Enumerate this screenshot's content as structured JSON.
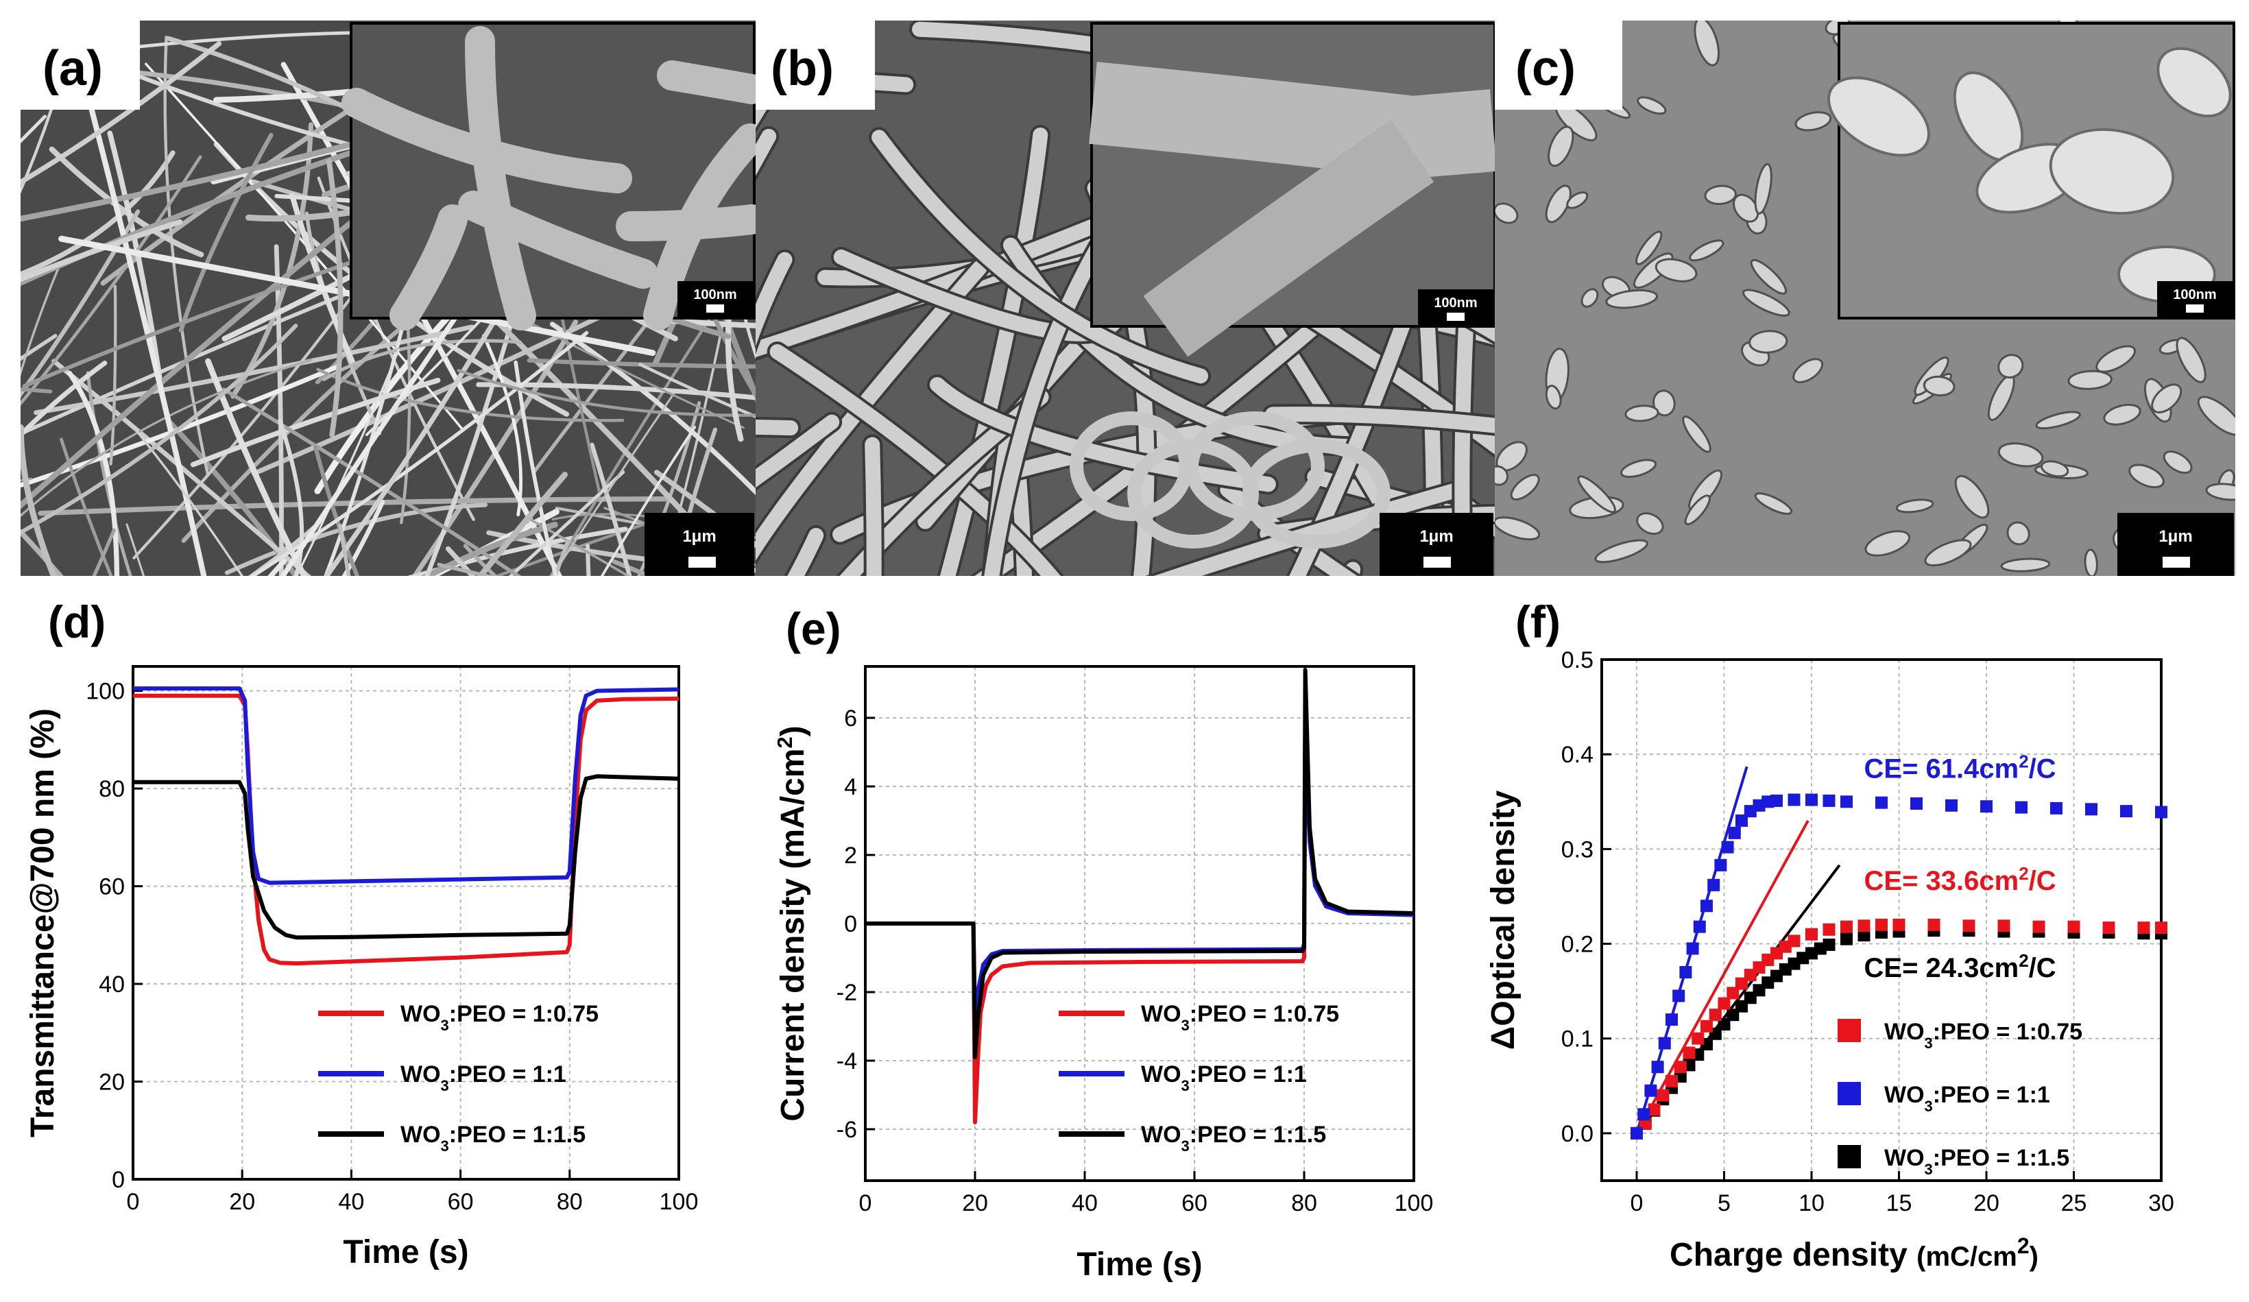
{
  "panels": {
    "a": {
      "label": "(a)",
      "main_scale": "1μm",
      "inset_scale": "100nm"
    },
    "b": {
      "label": "(b)",
      "main_scale": "1μm",
      "inset_scale": "100nm"
    },
    "c": {
      "label": "(c)",
      "main_scale": "1μm",
      "inset_scale": "100nm"
    }
  },
  "colors": {
    "red": "#e8141c",
    "blue": "#1a1ad8",
    "black": "#000000"
  },
  "chart_data": [
    {
      "id": "d",
      "panel_label": "(d)",
      "type": "line",
      "xlabel": "Time (s)",
      "ylabel": "Transmittance@700 nm (%)",
      "xlim": [
        0,
        100
      ],
      "ylim": [
        0,
        105
      ],
      "xticks": [
        0,
        20,
        40,
        60,
        80,
        100
      ],
      "yticks": [
        0,
        20,
        40,
        60,
        80,
        100
      ],
      "legend_position": "bottom-right",
      "series": [
        {
          "name_main": "WO",
          "name_sub": "3",
          "name_rest": ":PEO = 1:0.75",
          "color": "#e8141c",
          "points": [
            [
              0,
              99
            ],
            [
              19.5,
              99
            ],
            [
              20.5,
              97
            ],
            [
              21,
              88
            ],
            [
              22,
              65
            ],
            [
              23,
              53
            ],
            [
              24,
              47
            ],
            [
              25,
              45
            ],
            [
              27,
              44.3
            ],
            [
              30,
              44.2
            ],
            [
              40,
              44.6
            ],
            [
              60,
              45.4
            ],
            [
              79.5,
              46.5
            ],
            [
              80,
              48
            ],
            [
              81,
              73
            ],
            [
              82,
              90
            ],
            [
              83,
              96
            ],
            [
              85,
              98
            ],
            [
              90,
              98.3
            ],
            [
              100,
              98.4
            ]
          ]
        },
        {
          "name_main": "WO",
          "name_sub": "3",
          "name_rest": ":PEO = 1:1",
          "color": "#1a1ad8",
          "points": [
            [
              0,
              100.5
            ],
            [
              19.5,
              100.5
            ],
            [
              20.5,
              98
            ],
            [
              21,
              85
            ],
            [
              22,
              67
            ],
            [
              23,
              61.5
            ],
            [
              25,
              60.7
            ],
            [
              30,
              60.8
            ],
            [
              50,
              61.2
            ],
            [
              79.5,
              61.8
            ],
            [
              80,
              63
            ],
            [
              81,
              82
            ],
            [
              82,
              95
            ],
            [
              83,
              99
            ],
            [
              85,
              100
            ],
            [
              100,
              100.3
            ]
          ]
        },
        {
          "name_main": "WO",
          "name_sub": "3",
          "name_rest": ":PEO = 1:1.5",
          "color": "#000000",
          "points": [
            [
              0,
              81.3
            ],
            [
              19.5,
              81.3
            ],
            [
              20.5,
              79
            ],
            [
              21,
              72
            ],
            [
              22,
              62
            ],
            [
              24,
              55
            ],
            [
              26,
              51.5
            ],
            [
              28,
              50
            ],
            [
              30,
              49.5
            ],
            [
              40,
              49.6
            ],
            [
              60,
              50
            ],
            [
              79.5,
              50.3
            ],
            [
              80,
              52
            ],
            [
              81,
              67
            ],
            [
              82,
              78
            ],
            [
              83,
              82
            ],
            [
              85,
              82.5
            ],
            [
              100,
              82
            ]
          ]
        }
      ]
    },
    {
      "id": "e",
      "panel_label": "(e)",
      "type": "line",
      "xlabel": "Time (s)",
      "ylabel_main": "Current density (mA/cm",
      "ylabel_sup": "2",
      "ylabel_close": ")",
      "xlim": [
        0,
        100
      ],
      "ylim": [
        -7.5,
        7.5
      ],
      "xticks": [
        0,
        20,
        40,
        60,
        80,
        100
      ],
      "yticks": [
        -6,
        -4,
        -2,
        0,
        2,
        4,
        6
      ],
      "legend_position": "bottom-right",
      "series": [
        {
          "name_main": "WO",
          "name_sub": "3",
          "name_rest": ":PEO = 1:0.75",
          "color": "#e8141c",
          "points": [
            [
              0,
              0
            ],
            [
              19.7,
              0
            ],
            [
              20,
              -5.8
            ],
            [
              20.5,
              -4
            ],
            [
              21,
              -2.6
            ],
            [
              22,
              -1.8
            ],
            [
              23,
              -1.5
            ],
            [
              25,
              -1.25
            ],
            [
              30,
              -1.15
            ],
            [
              50,
              -1.12
            ],
            [
              79.7,
              -1.1
            ],
            [
              80,
              -1
            ],
            [
              80.2,
              5.8
            ],
            [
              81,
              2.5
            ],
            [
              82,
              1.2
            ],
            [
              84,
              0.5
            ],
            [
              88,
              0.3
            ],
            [
              100,
              0.3
            ]
          ]
        },
        {
          "name_main": "WO",
          "name_sub": "3",
          "name_rest": ":PEO = 1:1",
          "color": "#1a1ad8",
          "points": [
            [
              0,
              0
            ],
            [
              19.7,
              0
            ],
            [
              20,
              -2.7
            ],
            [
              20.5,
              -2
            ],
            [
              21.5,
              -1.2
            ],
            [
              23,
              -0.9
            ],
            [
              25,
              -0.8
            ],
            [
              40,
              -0.78
            ],
            [
              79.7,
              -0.75
            ],
            [
              80,
              -0.6
            ],
            [
              80.2,
              5.9
            ],
            [
              81,
              2.4
            ],
            [
              82,
              1.1
            ],
            [
              84,
              0.5
            ],
            [
              88,
              0.3
            ],
            [
              100,
              0.25
            ]
          ]
        },
        {
          "name_main": "WO",
          "name_sub": "3",
          "name_rest": ":PEO = 1:1.5",
          "color": "#000000",
          "points": [
            [
              0,
              0
            ],
            [
              19.7,
              0
            ],
            [
              20,
              -3.9
            ],
            [
              20.5,
              -2.8
            ],
            [
              21.5,
              -1.5
            ],
            [
              23,
              -1
            ],
            [
              25,
              -0.85
            ],
            [
              40,
              -0.82
            ],
            [
              79.7,
              -0.8
            ],
            [
              80,
              -0.7
            ],
            [
              80.2,
              7.4
            ],
            [
              81,
              2.8
            ],
            [
              82,
              1.3
            ],
            [
              84,
              0.6
            ],
            [
              88,
              0.35
            ],
            [
              100,
              0.3
            ]
          ]
        }
      ]
    },
    {
      "id": "f",
      "panel_label": "(f)",
      "type": "scatter",
      "xlabel_main": "Charge density",
      "xlabel_unit": "(mC/cm",
      "xlabel_sup": "2",
      "xlabel_close": ")",
      "ylabel": "ΔOptical density",
      "xlim": [
        -2,
        30
      ],
      "ylim": [
        -0.05,
        0.5
      ],
      "xticks": [
        0,
        5,
        10,
        15,
        20,
        25,
        30
      ],
      "yticks": [
        0.0,
        0.1,
        0.2,
        0.3,
        0.4,
        0.5
      ],
      "legend_position": "bottom-right",
      "annotations": [
        {
          "text_main": "CE=  61.4cm",
          "text_sup": "2",
          "text_rest": "/C",
          "color": "#1a1ad8",
          "x": 13,
          "y": 0.375
        },
        {
          "text_main": "CE=  33.6cm",
          "text_sup": "2",
          "text_rest": "/C",
          "color": "#e8141c",
          "x": 13,
          "y": 0.257
        },
        {
          "text_main": "CE=  24.3cm",
          "text_sup": "2",
          "text_rest": "/C",
          "color": "#000000",
          "x": 13,
          "y": 0.165
        }
      ],
      "fit_lines": [
        {
          "color": "#1a1ad8",
          "x0": 0,
          "y0": 0,
          "x1": 6.3,
          "y1": 0.387
        },
        {
          "color": "#e8141c",
          "x0": 0,
          "y0": 0,
          "x1": 9.8,
          "y1": 0.33
        },
        {
          "color": "#000000",
          "x0": 0,
          "y0": 0,
          "x1": 11.6,
          "y1": 0.283
        }
      ],
      "series": [
        {
          "name_main": "WO",
          "name_sub": "3",
          "name_rest": ":PEO = 1:0.75",
          "color": "#e8141c",
          "x": [
            0,
            0.5,
            1,
            1.5,
            2,
            2.5,
            3,
            3.5,
            4,
            4.5,
            5,
            5.5,
            6,
            6.5,
            7,
            7.5,
            8,
            8.5,
            9,
            10,
            11,
            12,
            13,
            14,
            15,
            17,
            19,
            21,
            23,
            25,
            27,
            29,
            30
          ],
          "y": [
            0,
            0.01,
            0.025,
            0.04,
            0.055,
            0.07,
            0.085,
            0.1,
            0.113,
            0.125,
            0.137,
            0.148,
            0.158,
            0.167,
            0.175,
            0.183,
            0.19,
            0.197,
            0.203,
            0.21,
            0.215,
            0.218,
            0.219,
            0.22,
            0.22,
            0.22,
            0.219,
            0.219,
            0.218,
            0.218,
            0.217,
            0.217,
            0.217
          ]
        },
        {
          "name_main": "WO",
          "name_sub": "3",
          "name_rest": ":PEO = 1:1",
          "color": "#1a1ad8",
          "x": [
            0,
            0.4,
            0.8,
            1.2,
            1.6,
            2,
            2.4,
            2.8,
            3.2,
            3.6,
            4,
            4.4,
            4.8,
            5.2,
            5.6,
            6,
            6.5,
            7,
            7.5,
            8,
            9,
            10,
            11,
            12,
            14,
            16,
            18,
            20,
            22,
            24,
            26,
            28,
            30
          ],
          "y": [
            0,
            0.02,
            0.045,
            0.07,
            0.095,
            0.12,
            0.145,
            0.17,
            0.195,
            0.218,
            0.24,
            0.262,
            0.283,
            0.302,
            0.317,
            0.33,
            0.34,
            0.346,
            0.35,
            0.351,
            0.352,
            0.352,
            0.351,
            0.35,
            0.349,
            0.348,
            0.346,
            0.345,
            0.344,
            0.343,
            0.342,
            0.34,
            0.339
          ]
        },
        {
          "name_main": "WO",
          "name_sub": "3",
          "name_rest": ":PEO = 1:1.5",
          "color": "#000000",
          "x": [
            0,
            0.5,
            1,
            1.5,
            2,
            2.5,
            3,
            3.5,
            4,
            4.5,
            5,
            5.5,
            6,
            6.5,
            7,
            7.5,
            8,
            8.5,
            9,
            9.5,
            10,
            10.5,
            11,
            12,
            13,
            14,
            15,
            17,
            19,
            21,
            23,
            25,
            27,
            29,
            30
          ],
          "y": [
            0,
            0.012,
            0.024,
            0.036,
            0.048,
            0.06,
            0.072,
            0.083,
            0.094,
            0.105,
            0.115,
            0.125,
            0.134,
            0.143,
            0.151,
            0.159,
            0.166,
            0.173,
            0.179,
            0.185,
            0.19,
            0.195,
            0.199,
            0.205,
            0.209,
            0.212,
            0.213,
            0.214,
            0.214,
            0.213,
            0.213,
            0.212,
            0.212,
            0.211,
            0.211
          ]
        }
      ]
    }
  ]
}
